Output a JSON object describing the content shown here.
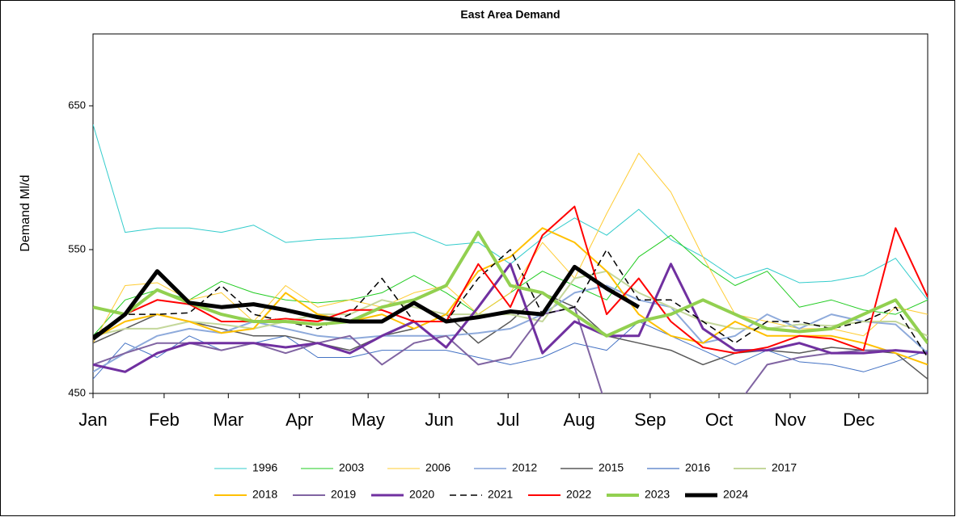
{
  "chart_data": {
    "type": "line",
    "title": "East Area Demand",
    "y_label": "Demand Ml/d",
    "x": [
      0,
      2,
      4,
      6,
      8,
      10,
      12,
      14,
      16,
      18,
      20,
      22,
      24,
      26,
      28,
      30,
      32,
      34,
      36,
      38,
      40,
      42,
      44,
      46,
      48,
      50,
      52
    ],
    "xlim": [
      0,
      52
    ],
    "xticks": [
      {
        "value": 0,
        "label": "Jan"
      },
      {
        "value": 4.43,
        "label": "Feb"
      },
      {
        "value": 8.43,
        "label": "Mar"
      },
      {
        "value": 12.86,
        "label": "Apr"
      },
      {
        "value": 17.14,
        "label": "May"
      },
      {
        "value": 21.57,
        "label": "Jun"
      },
      {
        "value": 25.86,
        "label": "Jul"
      },
      {
        "value": 30.29,
        "label": "Aug"
      },
      {
        "value": 34.71,
        "label": "Sep"
      },
      {
        "value": 39,
        "label": "Oct"
      },
      {
        "value": 43.43,
        "label": "Nov"
      },
      {
        "value": 47.71,
        "label": "Dec"
      }
    ],
    "ylim": [
      450,
      700
    ],
    "yticks": [
      450,
      550,
      650
    ],
    "series": [
      {
        "name": "1996",
        "color": "#33cccc",
        "width": 1,
        "values": [
          637,
          562,
          565,
          565,
          562,
          567,
          555,
          557,
          558,
          560,
          562,
          553,
          555,
          540,
          558,
          572,
          560,
          578,
          557,
          545,
          530,
          537,
          527,
          528,
          532,
          544,
          515
        ]
      },
      {
        "name": "2003",
        "color": "#22cc22",
        "width": 1,
        "values": [
          490,
          515,
          522,
          515,
          528,
          520,
          515,
          513,
          515,
          520,
          532,
          520,
          505,
          520,
          535,
          525,
          515,
          545,
          560,
          540,
          525,
          535,
          510,
          515,
          508,
          505,
          515
        ]
      },
      {
        "name": "2006",
        "color": "#ffcc33",
        "width": 1,
        "values": [
          485,
          525,
          527,
          515,
          520,
          500,
          525,
          510,
          515,
          510,
          520,
          525,
          505,
          520,
          555,
          530,
          575,
          617,
          590,
          545,
          505,
          500,
          495,
          495,
          490,
          510,
          505
        ]
      },
      {
        "name": "2012",
        "color": "#4472c4",
        "width": 1,
        "values": [
          460,
          485,
          475,
          490,
          480,
          485,
          490,
          475,
          475,
          480,
          480,
          480,
          475,
          470,
          475,
          485,
          480,
          500,
          490,
          480,
          470,
          480,
          472,
          470,
          465,
          472,
          480
        ]
      },
      {
        "name": "2015",
        "color": "#595959",
        "width": 1.5,
        "values": [
          485,
          495,
          505,
          500,
          495,
          490,
          490,
          485,
          480,
          490,
          495,
          505,
          485,
          500,
          520,
          510,
          490,
          485,
          480,
          470,
          478,
          480,
          478,
          482,
          480,
          478,
          460
        ]
      },
      {
        "name": "2016",
        "color": "#8eaadb",
        "width": 2,
        "values": [
          465,
          478,
          490,
          495,
          492,
          500,
          495,
          490,
          488,
          490,
          490,
          490,
          492,
          495,
          505,
          520,
          525,
          515,
          510,
          485,
          490,
          505,
          495,
          505,
          500,
          498,
          478
        ]
      },
      {
        "name": "2017",
        "color": "#c4d79b",
        "width": 2,
        "values": [
          490,
          495,
          495,
          500,
          498,
          495,
          500,
          505,
          505,
          515,
          510,
          505,
          505,
          505,
          500,
          530,
          535,
          520,
          510,
          500,
          495,
          495,
          498,
          497,
          500,
          500,
          490
        ]
      },
      {
        "name": "2018",
        "color": "#ffc000",
        "width": 2,
        "values": [
          488,
          500,
          505,
          500,
          492,
          495,
          520,
          505,
          500,
          505,
          495,
          505,
          535,
          545,
          565,
          555,
          535,
          505,
          490,
          485,
          500,
          490,
          490,
          490,
          485,
          478,
          470
        ]
      },
      {
        "name": "2019",
        "color": "#8064a2",
        "width": 2,
        "values": [
          470,
          478,
          485,
          485,
          480,
          485,
          478,
          485,
          490,
          470,
          485,
          490,
          470,
          475,
          505,
          510,
          440,
          430,
          425,
          430,
          440,
          470,
          475,
          478,
          480,
          480,
          478
        ]
      },
      {
        "name": "2020",
        "color": "#7030a0",
        "width": 3,
        "values": [
          470,
          465,
          478,
          485,
          485,
          485,
          482,
          485,
          478,
          490,
          500,
          482,
          510,
          540,
          478,
          500,
          490,
          490,
          540,
          495,
          480,
          480,
          485,
          478,
          478,
          480,
          478
        ]
      },
      {
        "name": "2021",
        "color": "#000000",
        "width": 1.5,
        "dashed": true,
        "values": [
          490,
          505,
          505,
          506,
          525,
          505,
          500,
          495,
          505,
          530,
          500,
          500,
          530,
          550,
          505,
          510,
          550,
          515,
          515,
          500,
          485,
          500,
          500,
          495,
          500,
          510,
          475
        ]
      },
      {
        "name": "2022",
        "color": "#ff0000",
        "width": 2,
        "values": [
          488,
          505,
          515,
          512,
          500,
          500,
          502,
          500,
          508,
          508,
          500,
          500,
          540,
          510,
          560,
          580,
          505,
          530,
          500,
          482,
          478,
          482,
          490,
          488,
          480,
          565,
          517
        ]
      },
      {
        "name": "2023",
        "color": "#92d050",
        "width": 4,
        "values": [
          510,
          505,
          522,
          513,
          505,
          500,
          500,
          498,
          500,
          510,
          515,
          525,
          562,
          525,
          520,
          505,
          490,
          500,
          505,
          515,
          505,
          495,
          493,
          495,
          505,
          515,
          485
        ]
      },
      {
        "name": "2024",
        "color": "#000000",
        "width": 5,
        "values": [
          488,
          505,
          535,
          513,
          510,
          512,
          508,
          503,
          500,
          500,
          513,
          500,
          503,
          507,
          505,
          538,
          523,
          510,
          null,
          null,
          null,
          null,
          null,
          null,
          null,
          null,
          null
        ]
      }
    ]
  }
}
